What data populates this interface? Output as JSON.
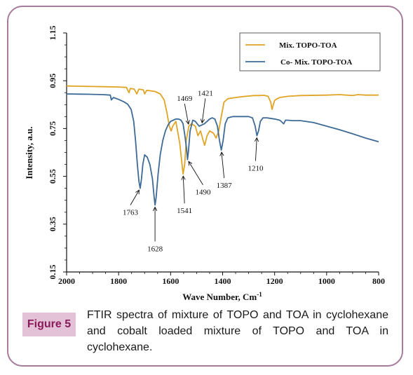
{
  "chart_data": {
    "type": "line",
    "xlabel": "Wave Number, Cm",
    "xlabel_sup": "-1",
    "ylabel": "Intensity, a.u.",
    "x_ticks": [
      "2000",
      "1800",
      "1600",
      "1400",
      "1200",
      "1000",
      "800"
    ],
    "y_ticks": [
      "0.15",
      "0.35",
      "0.55",
      "0.75",
      "0.95",
      "1.15"
    ],
    "xlim": [
      2000,
      800
    ],
    "ylim": [
      0.15,
      1.15
    ],
    "x_reversed": true,
    "legend_position": "top-right",
    "series": [
      {
        "name": "Mix. TOPO-TOA",
        "color": "#e0a526",
        "points": [
          [
            2000,
            0.928
          ],
          [
            1950,
            0.927
          ],
          [
            1900,
            0.926
          ],
          [
            1860,
            0.925
          ],
          [
            1800,
            0.924
          ],
          [
            1770,
            0.922
          ],
          [
            1760,
            0.9
          ],
          [
            1755,
            0.918
          ],
          [
            1740,
            0.915
          ],
          [
            1730,
            0.895
          ],
          [
            1722,
            0.915
          ],
          [
            1705,
            0.912
          ],
          [
            1700,
            0.895
          ],
          [
            1692,
            0.91
          ],
          [
            1660,
            0.905
          ],
          [
            1640,
            0.895
          ],
          [
            1625,
            0.87
          ],
          [
            1615,
            0.82
          ],
          [
            1605,
            0.76
          ],
          [
            1598,
            0.74
          ],
          [
            1592,
            0.76
          ],
          [
            1580,
            0.78
          ],
          [
            1565,
            0.69
          ],
          [
            1558,
            0.62
          ],
          [
            1552,
            0.56
          ],
          [
            1546,
            0.6
          ],
          [
            1540,
            0.7
          ],
          [
            1530,
            0.76
          ],
          [
            1520,
            0.77
          ],
          [
            1505,
            0.76
          ],
          [
            1495,
            0.72
          ],
          [
            1485,
            0.74
          ],
          [
            1475,
            0.7
          ],
          [
            1469,
            0.68
          ],
          [
            1460,
            0.72
          ],
          [
            1450,
            0.74
          ],
          [
            1435,
            0.73
          ],
          [
            1425,
            0.71
          ],
          [
            1415,
            0.74
          ],
          [
            1405,
            0.8
          ],
          [
            1395,
            0.86
          ],
          [
            1380,
            0.875
          ],
          [
            1350,
            0.88
          ],
          [
            1320,
            0.884
          ],
          [
            1300,
            0.886
          ],
          [
            1280,
            0.888
          ],
          [
            1260,
            0.888
          ],
          [
            1240,
            0.889
          ],
          [
            1225,
            0.885
          ],
          [
            1215,
            0.86
          ],
          [
            1210,
            0.83
          ],
          [
            1205,
            0.85
          ],
          [
            1200,
            0.868
          ],
          [
            1190,
            0.875
          ],
          [
            1180,
            0.88
          ],
          [
            1150,
            0.885
          ],
          [
            1100,
            0.888
          ],
          [
            1000,
            0.89
          ],
          [
            950,
            0.892
          ],
          [
            900,
            0.888
          ],
          [
            880,
            0.892
          ],
          [
            850,
            0.89
          ],
          [
            800,
            0.89
          ]
        ]
      },
      {
        "name": "Co- Mix. TOPO-TOA",
        "color": "#3d6a96",
        "points": [
          [
            2000,
            0.895
          ],
          [
            1950,
            0.894
          ],
          [
            1900,
            0.893
          ],
          [
            1860,
            0.892
          ],
          [
            1832,
            0.89
          ],
          [
            1828,
            0.87
          ],
          [
            1820,
            0.88
          ],
          [
            1800,
            0.872
          ],
          [
            1780,
            0.862
          ],
          [
            1765,
            0.852
          ],
          [
            1752,
            0.83
          ],
          [
            1742,
            0.78
          ],
          [
            1735,
            0.7
          ],
          [
            1728,
            0.6
          ],
          [
            1722,
            0.53
          ],
          [
            1717,
            0.5
          ],
          [
            1712,
            0.54
          ],
          [
            1707,
            0.6
          ],
          [
            1700,
            0.64
          ],
          [
            1690,
            0.63
          ],
          [
            1680,
            0.6
          ],
          [
            1670,
            0.54
          ],
          [
            1664,
            0.47
          ],
          [
            1660,
            0.43
          ],
          [
            1656,
            0.46
          ],
          [
            1648,
            0.56
          ],
          [
            1640,
            0.64
          ],
          [
            1630,
            0.7
          ],
          [
            1620,
            0.74
          ],
          [
            1610,
            0.765
          ],
          [
            1600,
            0.78
          ],
          [
            1590,
            0.785
          ],
          [
            1580,
            0.79
          ],
          [
            1570,
            0.79
          ],
          [
            1560,
            0.785
          ],
          [
            1552,
            0.77
          ],
          [
            1545,
            0.72
          ],
          [
            1538,
            0.66
          ],
          [
            1535,
            0.62
          ],
          [
            1532,
            0.65
          ],
          [
            1525,
            0.74
          ],
          [
            1515,
            0.785
          ],
          [
            1505,
            0.78
          ],
          [
            1498,
            0.77
          ],
          [
            1490,
            0.76
          ],
          [
            1480,
            0.765
          ],
          [
            1470,
            0.77
          ],
          [
            1460,
            0.78
          ],
          [
            1450,
            0.79
          ],
          [
            1440,
            0.795
          ],
          [
            1430,
            0.79
          ],
          [
            1420,
            0.76
          ],
          [
            1412,
            0.7
          ],
          [
            1405,
            0.66
          ],
          [
            1398,
            0.7
          ],
          [
            1390,
            0.77
          ],
          [
            1380,
            0.795
          ],
          [
            1360,
            0.8
          ],
          [
            1340,
            0.8
          ],
          [
            1320,
            0.8
          ],
          [
            1300,
            0.8
          ],
          [
            1285,
            0.795
          ],
          [
            1275,
            0.76
          ],
          [
            1268,
            0.72
          ],
          [
            1262,
            0.74
          ],
          [
            1255,
            0.78
          ],
          [
            1245,
            0.795
          ],
          [
            1230,
            0.795
          ],
          [
            1200,
            0.79
          ],
          [
            1180,
            0.785
          ],
          [
            1165,
            0.77
          ],
          [
            1158,
            0.785
          ],
          [
            1150,
            0.785
          ],
          [
            1130,
            0.783
          ],
          [
            1100,
            0.783
          ],
          [
            1050,
            0.775
          ],
          [
            1000,
            0.76
          ],
          [
            950,
            0.745
          ],
          [
            900,
            0.728
          ],
          [
            850,
            0.71
          ],
          [
            800,
            0.695
          ]
        ]
      }
    ],
    "annotations": [
      {
        "text": "1763",
        "x": 1717,
        "y": 0.5
      },
      {
        "text": "1628",
        "x": 1660,
        "y": 0.43
      },
      {
        "text": "1541",
        "x": 1552,
        "y": 0.56
      },
      {
        "text": "1490",
        "x": 1535,
        "y": 0.62
      },
      {
        "text": "1469",
        "x": 1530,
        "y": 0.76
      },
      {
        "text": "1421",
        "x": 1480,
        "y": 0.765
      },
      {
        "text": "1387",
        "x": 1405,
        "y": 0.66
      },
      {
        "text": "1210",
        "x": 1268,
        "y": 0.72
      }
    ]
  },
  "caption": {
    "label": "Figure 5",
    "text": "FTIR spectra of mixture of TOPO and TOA in cyclohexane and cobalt loaded mixture of TOPO and TOA in cyclohexane."
  }
}
